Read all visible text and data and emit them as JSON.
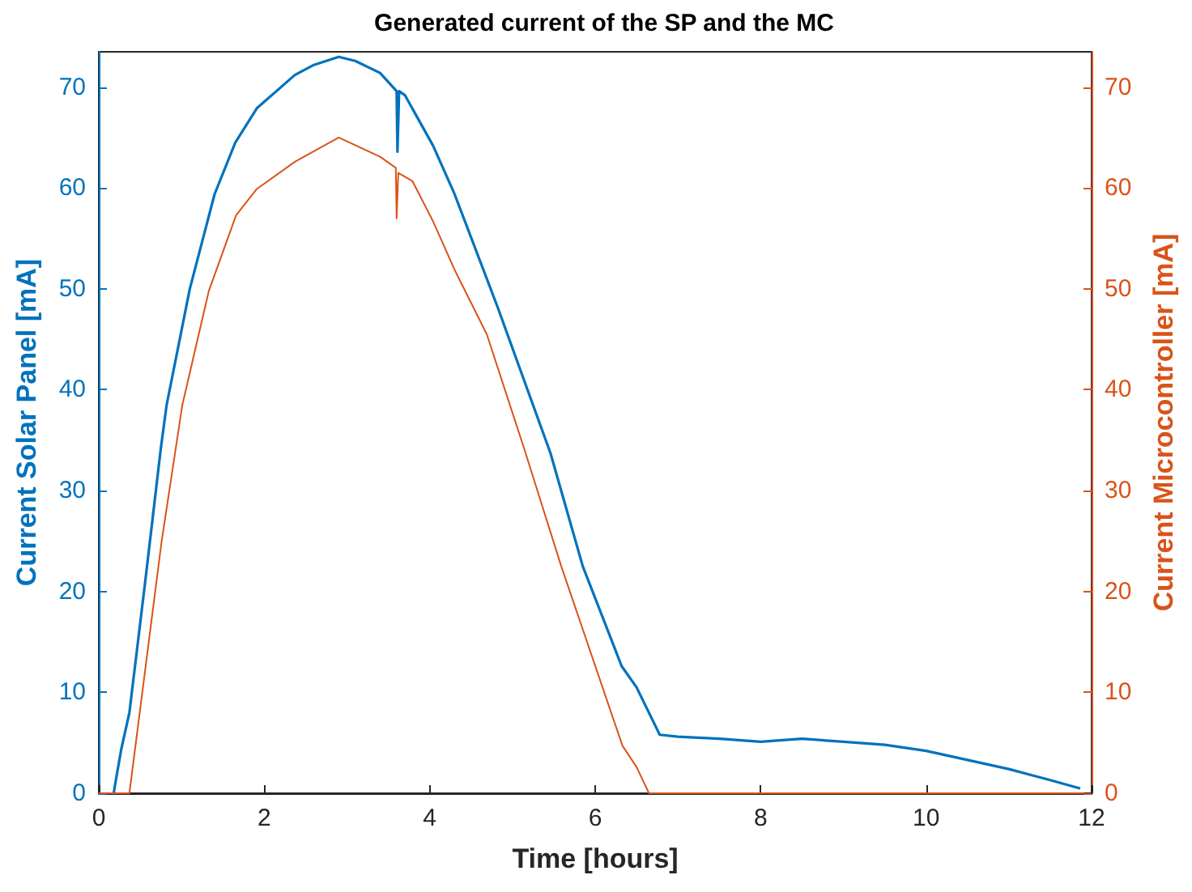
{
  "chart_data": {
    "type": "line",
    "title": "Generated current of the SP and the MC",
    "xlabel": "Time [hours]",
    "ylabel": "Current Solar Panel [mA]",
    "y2label": "Current Microcontroller [mA]",
    "xlim": [
      0,
      12
    ],
    "xticks": [
      0,
      2,
      4,
      6,
      8,
      10,
      12
    ],
    "ylim": [
      0,
      73.5
    ],
    "yticks": [
      0,
      10,
      20,
      30,
      40,
      50,
      60,
      70
    ],
    "y2lim": [
      0,
      73.5
    ],
    "y2ticks": [
      0,
      10,
      20,
      30,
      40,
      50,
      60,
      70
    ],
    "grid": false,
    "marker": "none",
    "line_style": "solid",
    "series": [
      {
        "color": "#0072bd",
        "x": [
          0.18,
          0.2,
          0.27,
          0.37,
          0.56,
          0.75,
          0.82,
          1.1,
          1.4,
          1.65,
          1.91,
          2.37,
          2.6,
          2.9,
          3.1,
          3.4,
          3.6,
          3.61,
          3.63,
          3.7,
          4.04,
          4.3,
          4.82,
          5.46,
          5.85,
          6.32,
          6.5,
          6.78,
          7.0,
          7.5,
          8.0,
          8.5,
          9.0,
          9.5,
          10.0,
          10.5,
          11.0,
          11.5,
          11.85
        ],
        "values": [
          0,
          1,
          4.3,
          8,
          20.9,
          34.2,
          38.5,
          50,
          59.4,
          64.5,
          67.9,
          71.2,
          72.2,
          73,
          72.6,
          71.4,
          69.6,
          63.6,
          69.6,
          69.2,
          64.2,
          59.4,
          48.2,
          33.7,
          22.5,
          12.6,
          10.5,
          5.8,
          5.6,
          5.4,
          5.1,
          5.4,
          5.1,
          4.8,
          4.2,
          3.3,
          2.4,
          1.3,
          0.5
        ]
      },
      {
        "color": "#d95319",
        "axis": "y2",
        "x": [
          0,
          0.37,
          0.76,
          1.01,
          1.33,
          1.66,
          1.91,
          2.37,
          2.9,
          3.4,
          3.59,
          3.6,
          3.62,
          3.79,
          4.04,
          4.3,
          4.69,
          5.14,
          5.59,
          6.33,
          6.5,
          6.65,
          11.9
        ],
        "values": [
          0,
          0,
          25,
          38.5,
          49.8,
          57.3,
          59.9,
          62.6,
          65,
          63.1,
          62,
          57,
          61.5,
          60.7,
          56.7,
          51.9,
          45.5,
          34.2,
          22.5,
          4.7,
          2.6,
          0,
          0
        ]
      }
    ]
  }
}
